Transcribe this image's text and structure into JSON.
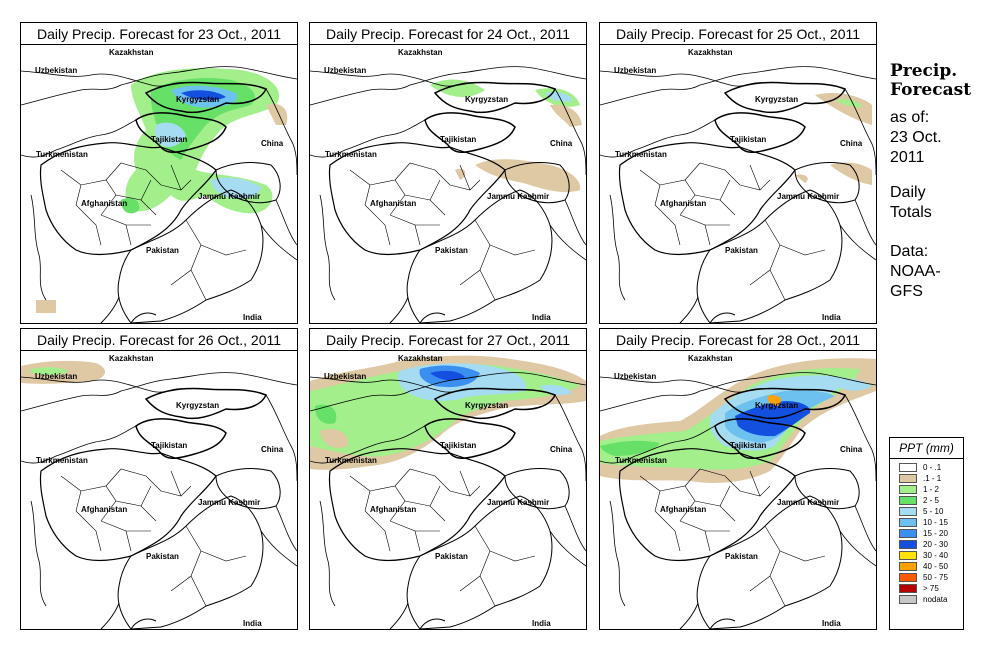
{
  "panels": [
    {
      "title": "Daily Precip. Forecast for  23 Oct., 2011",
      "date": "23 Oct."
    },
    {
      "title": "Daily Precip. Forecast for  24 Oct., 2011",
      "date": "24 Oct."
    },
    {
      "title": "Daily Precip. Forecast for  25 Oct., 2011",
      "date": "25 Oct."
    },
    {
      "title": "Daily Precip. Forecast for  26 Oct., 2011",
      "date": "26 Oct."
    },
    {
      "title": "Daily Precip. Forecast for  27 Oct., 2011",
      "date": "27 Oct."
    },
    {
      "title": "Daily Precip. Forecast for  28 Oct., 2011",
      "date": "28 Oct."
    }
  ],
  "map_labels": {
    "kazakhstan": "Kazakhstan",
    "uzbekistan": "Uzbekistan",
    "kyrgyzstan": "Kyrgyzstan",
    "tajikistan": "Tajikistan",
    "turkmenistan": "Turkmenistan",
    "china": "China",
    "afghanistan": "Afghanistan",
    "jammu_kashmir": "Jammu Kashmir",
    "pakistan": "Pakistan",
    "india": "India"
  },
  "sidebar": {
    "title_line1": "Precip.",
    "title_line2": "Forecast",
    "asof_line1": "as of:",
    "asof_line2": "23 Oct.",
    "asof_line3": "2011",
    "daily_line1": "Daily",
    "daily_line2": "Totals",
    "data_line1": "Data:",
    "data_line2": "NOAA-",
    "data_line3": "GFS"
  },
  "legend": {
    "title": "PPT (mm)",
    "items": [
      {
        "label": "0 - .1",
        "color": "#ffffff"
      },
      {
        "label": ".1 - 1",
        "color": "#dfc8a4"
      },
      {
        "label": "1 - 2",
        "color": "#a2ef8c"
      },
      {
        "label": "2 - 5",
        "color": "#66e066"
      },
      {
        "label": "5 - 10",
        "color": "#a6dcf2"
      },
      {
        "label": "10 - 15",
        "color": "#6cc1ef"
      },
      {
        "label": "15 - 20",
        "color": "#3b8ff0"
      },
      {
        "label": "20 - 30",
        "color": "#1450df"
      },
      {
        "label": "30 - 40",
        "color": "#ffe300"
      },
      {
        "label": "40 - 50",
        "color": "#ffa100"
      },
      {
        "label": "50 - 75",
        "color": "#ff5a00"
      },
      {
        "label": "> 75",
        "color": "#b40000"
      },
      {
        "label": "nodata",
        "color": "#c8c8c8"
      }
    ]
  },
  "precip_areas": [
    [
      {
        "level": "1 - 2",
        "region": "north-center"
      },
      {
        "level": "2 - 5",
        "region": "tajikistan-kyrgyzstan"
      },
      {
        "level": "5 - 10",
        "region": "kyrgyzstan"
      },
      {
        "level": "10 - 15",
        "region": "kyrgyzstan"
      },
      {
        "level": "20 - 30",
        "region": "kyrgyzstan"
      },
      {
        "level": "5 - 10",
        "region": "jammu-kashmir"
      }
    ],
    [
      {
        "level": ".1 - 1",
        "region": "north-east"
      },
      {
        "level": "1 - 2",
        "region": "kyrgyzstan"
      },
      {
        "level": "5 - 10",
        "region": "kyrgyzstan"
      }
    ],
    [
      {
        "level": ".1 - 1",
        "region": "east"
      },
      {
        "level": "1 - 2",
        "region": "east"
      }
    ],
    [
      {
        "level": ".1 - 1",
        "region": "north-west"
      },
      {
        "level": "1 - 2",
        "region": "north-west"
      }
    ],
    [
      {
        "level": ".1 - 1",
        "region": "west"
      },
      {
        "level": "1 - 2",
        "region": "north"
      },
      {
        "level": "5 - 10",
        "region": "kazakhstan"
      },
      {
        "level": "15 - 20",
        "region": "kazakhstan"
      }
    ],
    [
      {
        "level": "1 - 2",
        "region": "west-north"
      },
      {
        "level": "5 - 10",
        "region": "tajikistan"
      },
      {
        "level": "20 - 30",
        "region": "kyrgyzstan"
      },
      {
        "level": "40 - 50",
        "region": "kyrgyzstan"
      }
    ]
  ]
}
